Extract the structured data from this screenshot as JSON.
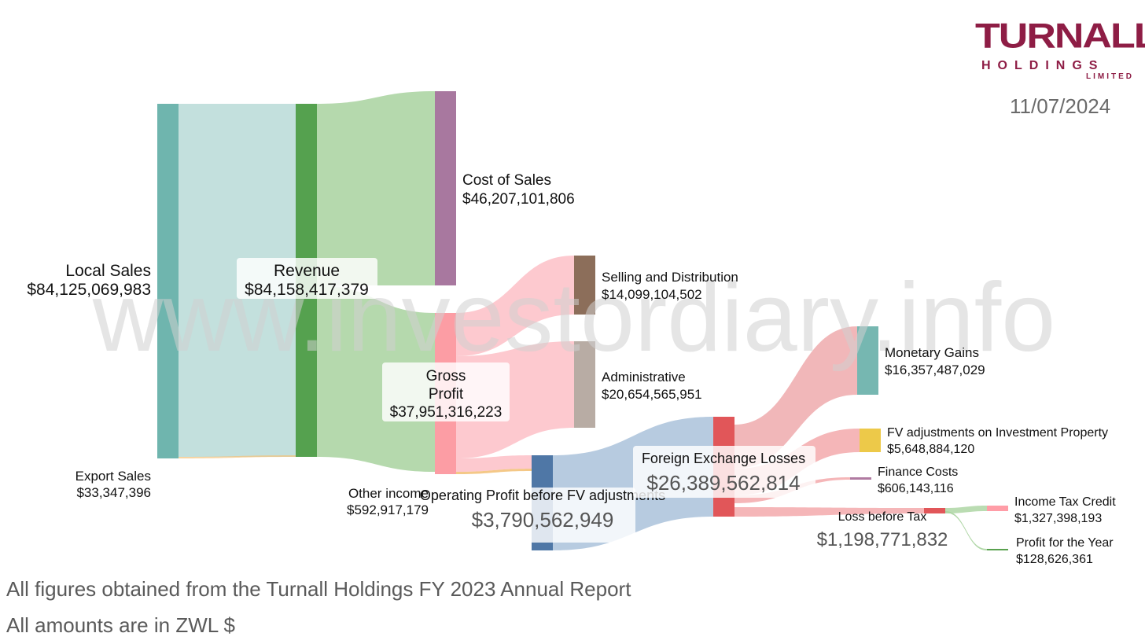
{
  "header": {
    "logo_text": "TURNALL",
    "logo_sub": "HOLDINGS",
    "logo_limited": "LIMITED",
    "date": "11/07/2024"
  },
  "watermark": "www.investordiary.info",
  "footer": {
    "line1": "All figures obtained from the Turnall Holdings FY 2023 Annual Report",
    "line2": "All amounts are in ZWL $"
  },
  "colors": {
    "local_sales": "#6fb5ae",
    "revenue": "#55a14f",
    "cost_of_sales": "#a8789f",
    "gross_profit": "#fc9da4",
    "selling": "#8c6e5a",
    "administrative": "#b8aca4",
    "operating": "#4f77a6",
    "fx_losses": "#e15659",
    "monetary": "#76b7b1",
    "fv_adj": "#edc949",
    "finance": "#b07aa1",
    "income_tax": "#ff9da7",
    "profit": "#59a14f"
  },
  "chart_data": {
    "type": "sankey",
    "title": "",
    "currency": "ZWL $",
    "nodes": [
      {
        "id": "local_sales",
        "label": "Local Sales",
        "value_label": "$84,125,069,983",
        "value": 84125069983
      },
      {
        "id": "export_sales",
        "label": "Export Sales",
        "value_label": "$33,347,396",
        "value": 33347396
      },
      {
        "id": "revenue",
        "label": "Revenue",
        "value_label": "$84,158,417,379",
        "value": 84158417379
      },
      {
        "id": "cost_of_sales",
        "label": "Cost of Sales",
        "value_label": "$46,207,101,806",
        "value": 46207101806
      },
      {
        "id": "gross_profit",
        "label": "Gross",
        "label2": "Profit",
        "value_label": "$37,951,316,223",
        "value": 37951316223
      },
      {
        "id": "selling",
        "label": "Selling and Distribution",
        "value_label": "$14,099,104,502",
        "value": 14099104502
      },
      {
        "id": "administrative",
        "label": "Administrative",
        "value_label": "$20,654,565,951",
        "value": 20654565951
      },
      {
        "id": "other_income",
        "label": "Other income",
        "value_label": "$592,917,179",
        "value": 592917179
      },
      {
        "id": "operating",
        "label": "Operating Profit before FV adjustments",
        "value_label": "$3,790,562,949",
        "value": 3790562949
      },
      {
        "id": "fx_losses",
        "label": "Foreign Exchange Losses",
        "value_label": "$26,389,562,814",
        "value": 26389562814
      },
      {
        "id": "monetary",
        "label": "Monetary Gains",
        "value_label": "$16,357,487,029",
        "value": 16357487029
      },
      {
        "id": "fv_adj",
        "label": "FV adjustments on Investment Property",
        "value_label": "$5,648,884,120",
        "value": 5648884120
      },
      {
        "id": "finance",
        "label": "Finance Costs",
        "value_label": "$606,143,116",
        "value": 606143116
      },
      {
        "id": "loss_before_tax",
        "label": "Loss before Tax",
        "value_label": "$1,198,771,832",
        "value": 1198771832
      },
      {
        "id": "income_tax",
        "label": "Income Tax Credit",
        "value_label": "$1,327,398,193",
        "value": 1327398193
      },
      {
        "id": "profit",
        "label": "Profit for the Year",
        "value_label": "$128,626,361",
        "value": 128626361
      }
    ],
    "links": [
      {
        "source": "local_sales",
        "target": "revenue",
        "value": 84125069983
      },
      {
        "source": "export_sales",
        "target": "revenue",
        "value": 33347396
      },
      {
        "source": "revenue",
        "target": "cost_of_sales",
        "value": 46207101806
      },
      {
        "source": "revenue",
        "target": "gross_profit",
        "value": 37951316223
      },
      {
        "source": "gross_profit",
        "target": "selling",
        "value": 14099104502
      },
      {
        "source": "gross_profit",
        "target": "administrative",
        "value": 20654565951
      },
      {
        "source": "gross_profit",
        "target": "operating",
        "value": 3197645770
      },
      {
        "source": "other_income",
        "target": "operating",
        "value": 592917179
      },
      {
        "source": "operating",
        "target": "fx_losses",
        "value": 3790562949
      },
      {
        "source": "monetary",
        "target": "fx_losses",
        "value": 16357487029
      },
      {
        "source": "fv_adj",
        "target": "fx_losses",
        "value": 5648884120
      },
      {
        "source": "finance",
        "target": "fx_losses",
        "value": 606143116
      },
      {
        "source": "fx_losses",
        "target": "loss_before_tax",
        "value": 1198771832
      },
      {
        "source": "income_tax",
        "target": "loss_before_tax",
        "value": 1327398193
      },
      {
        "source": "loss_before_tax",
        "target": "profit",
        "value": 128626361
      }
    ]
  }
}
